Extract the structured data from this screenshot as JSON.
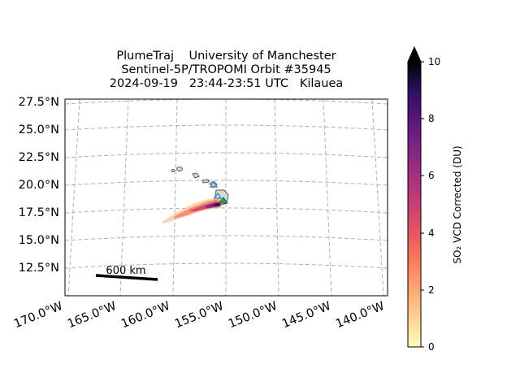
{
  "title": {
    "line1": "PlumeTraj    University of Manchester",
    "line2": "Sentinel-5P/TROPOMI Orbit #35945",
    "line3": "2024-09-19   23:44-23:51 UTC   Kilauea"
  },
  "map": {
    "lat_labels": [
      "27.5°N",
      "25.0°N",
      "22.5°N",
      "20.0°N",
      "17.5°N",
      "15.0°N",
      "12.5°N"
    ],
    "lon_labels": [
      "170.0°W",
      "165.0°W",
      "160.0°W",
      "155.0°W",
      "150.0°W",
      "145.0°W",
      "140.0°W"
    ],
    "gridlines": true,
    "scale_bar_label": "600 km",
    "volcano": "Kilauea"
  },
  "colorbar": {
    "label": "SO₂ VCD Corrected (DU)",
    "ticks": [
      "0",
      "2",
      "4",
      "6",
      "8",
      "10"
    ],
    "min": 0,
    "max": 10,
    "extend": "max",
    "colormap": "magma_r"
  },
  "colors": {
    "grid": "#b0b0b0",
    "coastline": "#555555",
    "trajectory_marker": "#4a90c8",
    "vent_marker": "#2e9e44"
  }
}
